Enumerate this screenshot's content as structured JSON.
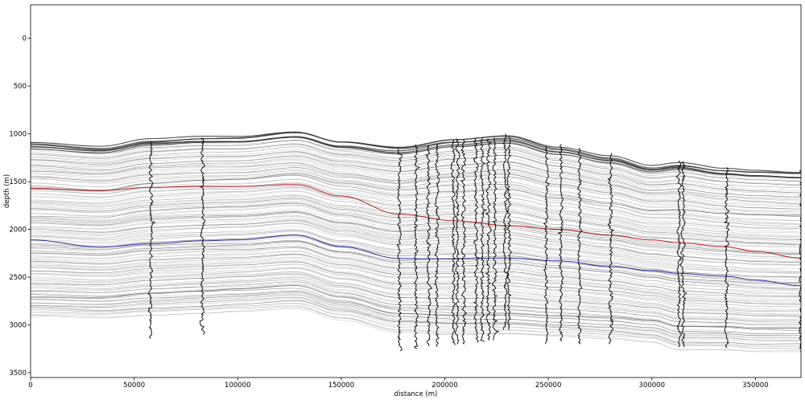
{
  "chart_data": {
    "type": "line",
    "xlabel": "distance (m)",
    "ylabel": "depth (m)",
    "xlim": [
      0,
      372000
    ],
    "ylim": [
      3550,
      -350
    ],
    "y_inverted": true,
    "grid": false,
    "x_ticks": [
      0,
      50000,
      100000,
      150000,
      200000,
      250000,
      300000,
      350000
    ],
    "x_tick_labels": [
      "0",
      "50000",
      "100000",
      "150000",
      "200000",
      "250000",
      "300000",
      "350000"
    ],
    "y_ticks": [
      0,
      500,
      1000,
      1500,
      2000,
      2500,
      3000,
      3500
    ],
    "y_tick_labels": [
      "0",
      "500",
      "1000",
      "1500",
      "2000",
      "2500",
      "3000",
      "3500"
    ],
    "colors": {
      "horizon_gray": "#8c8c8c",
      "top_horizon": "#333333",
      "red_horizon": "#b22222",
      "blue_horizon": "#2a2a9c",
      "well_log": "#000000"
    },
    "top_surface": {
      "x": [
        0,
        34000,
        58000,
        83000,
        100000,
        128000,
        150000,
        178000,
        205000,
        230000,
        255000,
        280000,
        300000,
        313000,
        335000,
        350000,
        372000
      ],
      "y": [
        1090,
        1130,
        1050,
        1025,
        1025,
        975,
        1080,
        1140,
        1060,
        1020,
        1140,
        1230,
        1330,
        1300,
        1360,
        1380,
        1400
      ]
    },
    "base_surface": {
      "x": [
        0,
        34000,
        58000,
        83000,
        100000,
        128000,
        150000,
        178000,
        205000,
        230000,
        255000,
        280000,
        300000,
        313000,
        335000,
        350000,
        372000
      ],
      "y": [
        2915,
        2930,
        2900,
        2880,
        2860,
        2830,
        2950,
        3080,
        3110,
        3110,
        3130,
        3150,
        3180,
        3260,
        3260,
        3280,
        3280
      ]
    },
    "series": [
      {
        "color": "#b22222",
        "x": [
          0,
          34000,
          58000,
          83000,
          100000,
          128000,
          150000,
          178000,
          205000,
          230000,
          255000,
          280000,
          300000,
          313000,
          335000,
          350000,
          372000
        ],
        "y": [
          1570,
          1595,
          1560,
          1550,
          1550,
          1530,
          1650,
          1840,
          1910,
          1960,
          2000,
          2060,
          2110,
          2140,
          2180,
          2230,
          2300
        ]
      },
      {
        "color": "#2a2a9c",
        "x": [
          0,
          34000,
          58000,
          83000,
          100000,
          128000,
          150000,
          178000,
          205000,
          230000,
          255000,
          280000,
          300000,
          313000,
          335000,
          350000,
          372000
        ],
        "y": [
          2110,
          2185,
          2150,
          2120,
          2110,
          2060,
          2180,
          2305,
          2310,
          2300,
          2330,
          2390,
          2430,
          2460,
          2490,
          2530,
          2590
        ]
      }
    ],
    "wells": [
      {
        "x": 58000,
        "top": 1080,
        "bottom": 3140
      },
      {
        "x": 83000,
        "top": 1040,
        "bottom": 3100
      },
      {
        "x": 178000,
        "top": 1160,
        "bottom": 3270
      },
      {
        "x": 186000,
        "top": 1110,
        "bottom": 3250
      },
      {
        "x": 192000,
        "top": 1120,
        "bottom": 3220
      },
      {
        "x": 196000,
        "top": 1110,
        "bottom": 3230
      },
      {
        "x": 204000,
        "top": 1060,
        "bottom": 3210
      },
      {
        "x": 206000,
        "top": 1050,
        "bottom": 3200
      },
      {
        "x": 209000,
        "top": 1060,
        "bottom": 3200
      },
      {
        "x": 215000,
        "top": 1040,
        "bottom": 3180
      },
      {
        "x": 218000,
        "top": 1040,
        "bottom": 3170
      },
      {
        "x": 221000,
        "top": 1050,
        "bottom": 3160
      },
      {
        "x": 224000,
        "top": 1040,
        "bottom": 3160
      },
      {
        "x": 229000,
        "top": 1000,
        "bottom": 3050
      },
      {
        "x": 231000,
        "top": 1030,
        "bottom": 3050
      },
      {
        "x": 249000,
        "top": 1130,
        "bottom": 3200
      },
      {
        "x": 256000,
        "top": 1110,
        "bottom": 3170
      },
      {
        "x": 265000,
        "top": 1150,
        "bottom": 3200
      },
      {
        "x": 280000,
        "top": 1200,
        "bottom": 3200
      },
      {
        "x": 313000,
        "top": 1280,
        "bottom": 3230
      },
      {
        "x": 315000,
        "top": 1290,
        "bottom": 3230
      },
      {
        "x": 336000,
        "top": 1350,
        "bottom": 3240
      },
      {
        "x": 372000,
        "top": 1380,
        "bottom": 3280
      }
    ]
  }
}
